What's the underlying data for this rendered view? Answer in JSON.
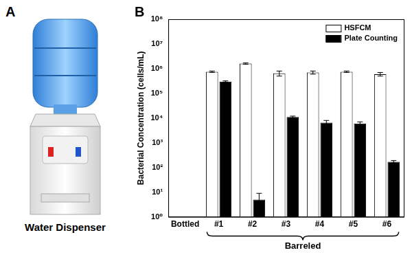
{
  "panel_labels": [
    "A",
    "B"
  ],
  "image_caption": "Water Dispenser",
  "chart_data": {
    "type": "bar",
    "categories": [
      "Bottled",
      "#1",
      "#2",
      "#3",
      "#4",
      "#5",
      "#6"
    ],
    "y_label": "Bacterial Concentration (cells/mL)",
    "annotations": [
      "Barreled"
    ],
    "log": "y",
    "grid": false,
    "legend": "upper right",
    "ylim": [
      1,
      100000000
    ],
    "yticks": [
      {
        "value": 1,
        "label": "10⁰"
      },
      {
        "value": 10,
        "label": "10¹"
      },
      {
        "value": 100,
        "label": "10²"
      },
      {
        "value": 1000,
        "label": "10³"
      },
      {
        "value": 10000,
        "label": "10⁴"
      },
      {
        "value": 100000,
        "label": "10⁵"
      },
      {
        "value": 1000000,
        "label": "10⁶"
      },
      {
        "value": 10000000,
        "label": "10⁷"
      },
      {
        "value": 100000000,
        "label": "10⁸"
      }
    ],
    "series": [
      {
        "name": "HSFCM",
        "color": "#ffffff",
        "values": [
          null,
          750000,
          1600000,
          650000,
          700000,
          750000,
          600000
        ],
        "errors": [
          null,
          50000,
          100000,
          150000,
          100000,
          50000,
          100000
        ]
      },
      {
        "name": "Plate Counting",
        "color": "#000000",
        "values": [
          null,
          300000,
          5,
          11000,
          6500,
          6000,
          170
        ],
        "errors": [
          null,
          20000,
          4,
          1000,
          1500,
          1000,
          20
        ]
      }
    ]
  }
}
